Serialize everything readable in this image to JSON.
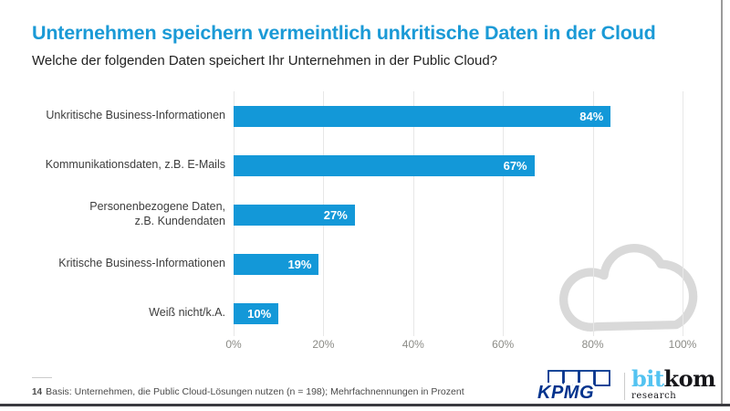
{
  "slide": {
    "title": "Unternehmen speichern vermeintlich unkritische Daten in der Cloud",
    "subtitle": "Welche der folgenden Daten speichert Ihr Unternehmen in der Public Cloud?",
    "accent_color": "#1398d8"
  },
  "chart_data": {
    "type": "bar",
    "orientation": "horizontal",
    "title": "Unternehmen speichern vermeintlich unkritische Daten in der Cloud",
    "subtitle": "Welche der folgenden Daten speichert Ihr Unternehmen in der Public Cloud?",
    "categories": [
      "Unkritische Business-Informationen",
      "Kommunikationsdaten, z.B. E-Mails",
      "Personenbezogene Daten,\nz.B. Kundendaten",
      "Kritische Business-Informationen",
      "Weiß nicht/k.A."
    ],
    "values": [
      84,
      67,
      27,
      19,
      10
    ],
    "value_labels": [
      "84%",
      "67%",
      "27%",
      "19%",
      "10%"
    ],
    "x_ticks": [
      "0%",
      "20%",
      "40%",
      "60%",
      "80%",
      "100%"
    ],
    "xlim": [
      0,
      100
    ],
    "bar_color": "#1398d8",
    "grid": true,
    "legend": false
  },
  "watermark": {
    "icon": "cloud-outline",
    "color": "#d9d9d9"
  },
  "footer": {
    "page_number": "14",
    "note": "Basis: Unternehmen, die Public Cloud-Lösungen nutzen (n = 198); Mehrfachnennungen in Prozent"
  },
  "branding": {
    "kpmg_label": "KPMG",
    "kpmg_color": "#00338d",
    "bitkom_part1": "bit",
    "bitkom_part2": "kom",
    "bitkom_subtitle": "research",
    "bitkom_blue": "#53c3f1"
  }
}
